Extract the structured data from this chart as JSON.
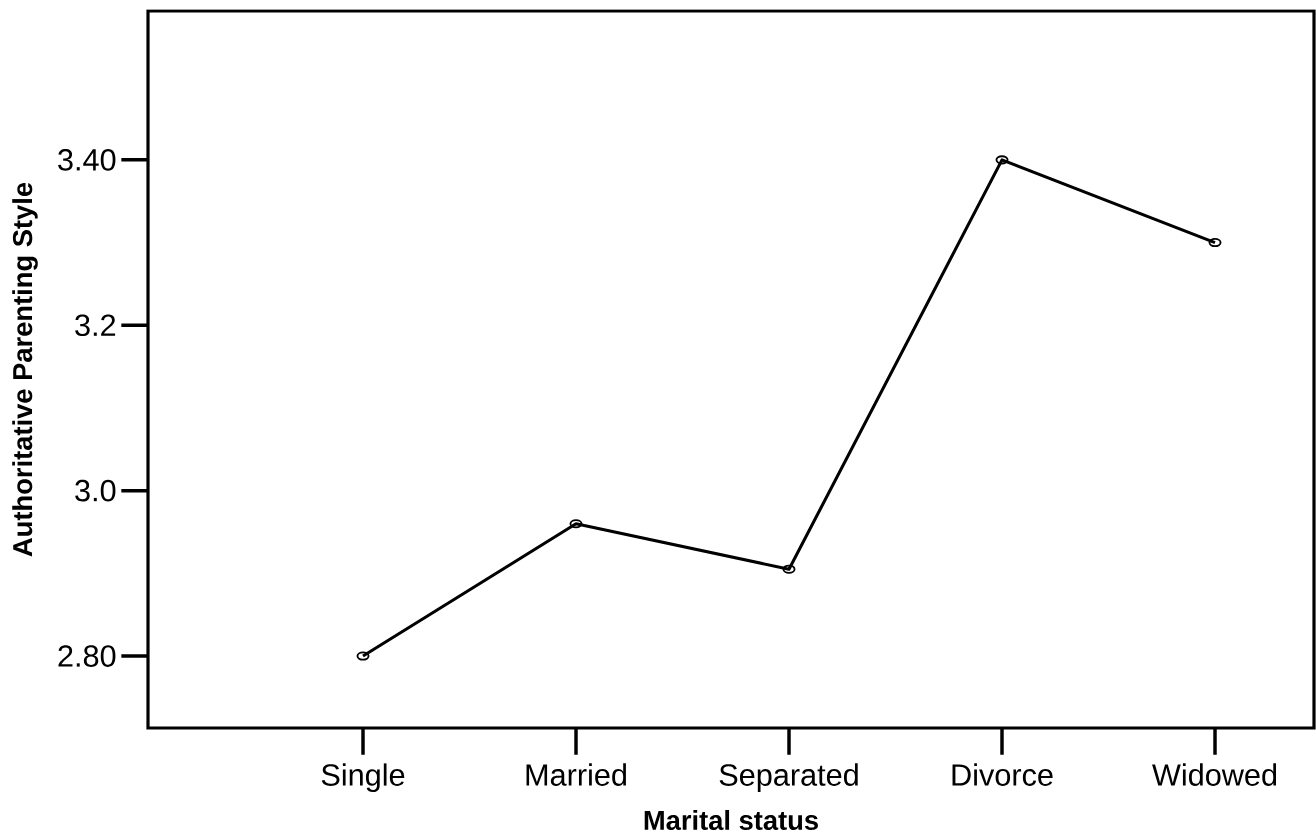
{
  "chart_data": {
    "type": "line",
    "xlabel": "Marital status",
    "ylabel": "Authoritative Parenting Style",
    "categories": [
      "Single",
      "Married",
      "Separated",
      "Divorce",
      "Widowed"
    ],
    "values": [
      2.8,
      2.96,
      2.905,
      3.4,
      3.3
    ],
    "color": "#000000",
    "marker": "circle",
    "line_style": "solid",
    "ylim": [
      2.713,
      3.58
    ],
    "yticks": [
      {
        "value": 2.8,
        "label": "2.80"
      },
      {
        "value": 3.0,
        "label": "3.0"
      },
      {
        "value": 3.2,
        "label": "3.2"
      },
      {
        "value": 3.4,
        "label": "3.40"
      }
    ]
  }
}
